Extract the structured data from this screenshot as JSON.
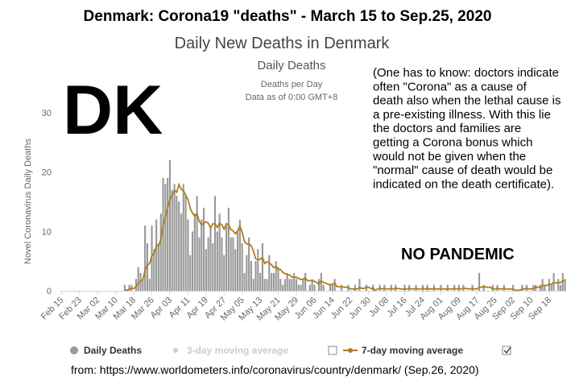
{
  "header": "Denmark: Corona19 \"deaths\" - March 15 to Sep.25, 2020",
  "big_label": "DK",
  "annotation_lines": [
    "(One has to know: doctors indicate",
    "often \"Corona\" as a cause of",
    "death also when the lethal cause is",
    "a pre-existing illness. With this lie",
    "the doctors and families are",
    "getting a Corona bonus which",
    "would not be given when the",
    "\"normal\" cause of death would be",
    "indicated on the death certificate)."
  ],
  "stamp": "NO PANDEMIC",
  "footer": "from: https://www.worldometers.info/coronavirus/country/denmark/ (Sep.26, 2020)",
  "chart_data": {
    "type": "bar",
    "title": "Daily New Deaths in Denmark",
    "subtitle": "Daily Deaths",
    "note_lines": [
      "Deaths per Day",
      "Data as of 0:00 GMT+8"
    ],
    "y_label": "Novel Coronavirus Daily Deaths",
    "ylim": [
      0,
      30
    ],
    "yticks": [
      0,
      10,
      20,
      30
    ],
    "grid": false,
    "categories": [
      "Feb 15",
      null,
      null,
      null,
      null,
      null,
      null,
      null,
      "Feb 23",
      null,
      null,
      null,
      null,
      null,
      null,
      null,
      "Mar 02",
      null,
      null,
      null,
      null,
      null,
      null,
      null,
      "Mar 10",
      null,
      null,
      null,
      null,
      null,
      null,
      null,
      "Mar 18",
      null,
      null,
      null,
      null,
      null,
      null,
      null,
      "Mar 26",
      null,
      null,
      null,
      null,
      null,
      null,
      null,
      "Apr 03",
      null,
      null,
      null,
      null,
      null,
      null,
      null,
      "Apr 11",
      null,
      null,
      null,
      null,
      null,
      null,
      null,
      "Apr 19",
      null,
      null,
      null,
      null,
      null,
      null,
      null,
      "Apr 27",
      null,
      null,
      null,
      null,
      null,
      null,
      null,
      "May 05",
      null,
      null,
      null,
      null,
      null,
      null,
      null,
      "May 13",
      null,
      null,
      null,
      null,
      null,
      null,
      null,
      "May 21",
      null,
      null,
      null,
      null,
      null,
      null,
      null,
      "May 29",
      null,
      null,
      null,
      null,
      null,
      null,
      null,
      "Jun 06",
      null,
      null,
      null,
      null,
      null,
      null,
      null,
      "Jun 14",
      null,
      null,
      null,
      null,
      null,
      null,
      null,
      "Jun 22",
      null,
      null,
      null,
      null,
      null,
      null,
      null,
      "Jun 30",
      null,
      null,
      null,
      null,
      null,
      null,
      null,
      "Jul 08",
      null,
      null,
      null,
      null,
      null,
      null,
      null,
      "Jul 16",
      null,
      null,
      null,
      null,
      null,
      null,
      null,
      "Jul 24",
      null,
      null,
      null,
      null,
      null,
      null,
      null,
      "Aug 01",
      null,
      null,
      null,
      null,
      null,
      null,
      null,
      "Aug 09",
      null,
      null,
      null,
      null,
      null,
      null,
      null,
      "Aug 17",
      null,
      null,
      null,
      null,
      null,
      null,
      null,
      "Aug 25",
      null,
      null,
      null,
      null,
      null,
      null,
      null,
      "Sep 02",
      null,
      null,
      null,
      null,
      null,
      null,
      null,
      "Sep 10",
      null,
      null,
      null,
      null,
      null,
      null,
      null,
      "Sep 18",
      null,
      null,
      null,
      null,
      null,
      null,
      null
    ],
    "series": [
      {
        "name": "Daily Deaths",
        "type": "bar",
        "color": "#999999",
        "values": [
          0,
          0,
          0,
          0,
          0,
          0,
          0,
          0,
          0,
          0,
          0,
          0,
          0,
          0,
          0,
          0,
          0,
          0,
          0,
          0,
          0,
          0,
          0,
          0,
          0,
          0,
          0,
          0,
          1,
          0,
          1,
          1,
          0,
          2,
          4,
          3,
          2,
          11,
          8,
          2,
          11,
          7,
          12,
          8,
          13,
          19,
          18,
          19,
          22,
          17,
          18,
          16,
          15,
          13,
          18,
          16,
          12,
          6,
          10,
          13,
          16,
          9,
          12,
          14,
          7,
          9,
          11,
          8,
          16,
          10,
          13,
          9,
          6,
          11,
          14,
          9,
          9,
          7,
          10,
          12,
          8,
          3,
          6,
          9,
          5,
          2,
          5,
          7,
          3,
          8,
          2,
          2,
          6,
          3,
          3,
          5,
          4,
          2,
          1,
          2,
          3,
          2,
          2,
          3,
          2,
          1,
          1,
          2,
          3,
          0,
          1,
          2,
          1,
          0,
          2,
          3,
          1,
          0,
          0,
          1,
          1,
          2,
          0,
          0,
          1,
          0,
          0,
          1,
          0,
          0,
          1,
          0,
          2,
          0,
          0,
          1,
          0,
          0,
          1,
          0,
          0,
          1,
          0,
          1,
          0,
          0,
          1,
          0,
          1,
          0,
          0,
          0,
          1,
          0,
          1,
          0,
          0,
          1,
          0,
          0,
          1,
          0,
          1,
          0,
          0,
          1,
          0,
          0,
          1,
          0,
          0,
          1,
          0,
          0,
          1,
          0,
          1,
          0,
          1,
          0,
          0,
          0,
          1,
          0,
          0,
          3,
          0,
          1,
          0,
          0,
          0,
          1,
          0,
          1,
          0,
          0,
          1,
          0,
          0,
          0,
          1,
          0,
          0,
          0,
          1,
          0,
          1,
          0,
          0,
          1,
          1,
          0,
          1,
          2,
          1,
          0,
          2,
          1,
          3,
          0,
          2,
          1,
          3,
          2
        ]
      },
      {
        "name": "7-day moving average",
        "type": "line",
        "color": "#b07c1c",
        "values": [
          null,
          null,
          null,
          null,
          null,
          null,
          null,
          null,
          null,
          null,
          null,
          null,
          null,
          null,
          null,
          null,
          null,
          null,
          null,
          null,
          null,
          null,
          null,
          null,
          null,
          null,
          null,
          null,
          0.1,
          0.1,
          0.3,
          0.4,
          0.4,
          0.7,
          1.3,
          1.6,
          1.9,
          3.4,
          4.3,
          4.6,
          5.9,
          6.3,
          7.6,
          7.6,
          8.7,
          11.1,
          12.3,
          14.0,
          15.4,
          16.1,
          16.9,
          16.6,
          17.9,
          17.1,
          16.9,
          16.1,
          15.4,
          13.9,
          13.1,
          12.6,
          13.0,
          11.7,
          11.1,
          11.4,
          11.6,
          11.4,
          10.6,
          11.3,
          11.3,
          10.7,
          11.4,
          11.1,
          10.4,
          11.3,
          11.1,
          10.3,
          10.1,
          9.6,
          10.1,
          10.9,
          9.9,
          8.3,
          7.9,
          7.9,
          7.6,
          6.7,
          5.4,
          5.3,
          5.3,
          5.6,
          4.6,
          4.9,
          4.7,
          4.4,
          3.9,
          4.1,
          3.6,
          3.6,
          3.1,
          2.9,
          2.7,
          2.7,
          2.3,
          2.3,
          2.3,
          2.1,
          1.9,
          2.0,
          2.1,
          1.7,
          1.7,
          1.7,
          1.6,
          1.4,
          1.1,
          1.7,
          1.4,
          1.3,
          1.1,
          1.0,
          1.1,
          1.3,
          0.7,
          0.7,
          0.7,
          0.6,
          0.6,
          0.6,
          0.3,
          0.3,
          0.3,
          0.3,
          0.6,
          0.4,
          0.4,
          0.6,
          0.6,
          0.4,
          0.4,
          0.1,
          0.3,
          0.4,
          0.3,
          0.4,
          0.3,
          0.3,
          0.4,
          0.3,
          0.4,
          0.4,
          0.3,
          0.3,
          0.3,
          0.3,
          0.4,
          0.3,
          0.3,
          0.4,
          0.3,
          0.3,
          0.4,
          0.3,
          0.4,
          0.3,
          0.3,
          0.4,
          0.3,
          0.3,
          0.4,
          0.3,
          0.3,
          0.3,
          0.3,
          0.3,
          0.4,
          0.3,
          0.4,
          0.3,
          0.4,
          0.4,
          0.3,
          0.3,
          0.4,
          0.3,
          0.3,
          0.6,
          0.6,
          0.7,
          0.6,
          0.6,
          0.6,
          0.3,
          0.3,
          0.4,
          0.3,
          0.3,
          0.4,
          0.3,
          0.3,
          0.3,
          0.3,
          0.1,
          0.1,
          0.1,
          0.3,
          0.3,
          0.4,
          0.3,
          0.3,
          0.4,
          0.6,
          0.6,
          0.6,
          0.9,
          0.9,
          0.9,
          1.1,
          1.1,
          1.4,
          1.3,
          1.4,
          1.4,
          1.7,
          1.7
        ]
      }
    ],
    "hidden_series": [
      {
        "name": "3-day moving average",
        "color": "#cccccc"
      }
    ]
  }
}
